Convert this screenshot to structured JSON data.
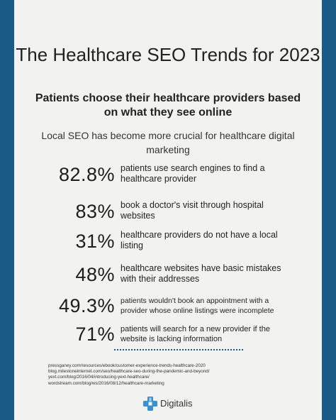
{
  "title": "The Healthcare SEO Trends for 2023",
  "subtitle": "Patients choose their healthcare providers based on what they see online",
  "intro": "Local SEO has become more crucial for healthcare digital marketing",
  "stats": [
    {
      "value": "82.8%",
      "text": "patients use search engines to find a healthcare provider"
    },
    {
      "value": "83%",
      "text": "book a doctor's visit through hospital websites"
    },
    {
      "value": "31%",
      "text": "healthcare providers do not have a local listing"
    },
    {
      "value": "48%",
      "text": "healthcare websites have basic mistakes with their addresses"
    },
    {
      "value": "49.3%",
      "text": "patients wouldn't book an appointment with a provider whose online listings were incomplete"
    },
    {
      "value": "71%",
      "text": "patients will search for a new provider if the website is lacking information"
    }
  ],
  "sources": [
    "pressganey.com/resources/ebook/customer-experience-trends-healthcare-2020",
    "blog.milestoneinternet.com/seo/healthcare-seo-during-the-pandemic-and-beyond/",
    "yext.com/blog/2016/04/introducing-yext-healthcare/",
    "wordstream.com/blog/ws/2016/08/12/healthcare-marketing"
  ],
  "brand": {
    "name": "Digitalis",
    "icon": "medical-cross-icon"
  },
  "colors": {
    "frame": "#1a5a86",
    "card": "#f2f2f0",
    "text": "#222222"
  }
}
